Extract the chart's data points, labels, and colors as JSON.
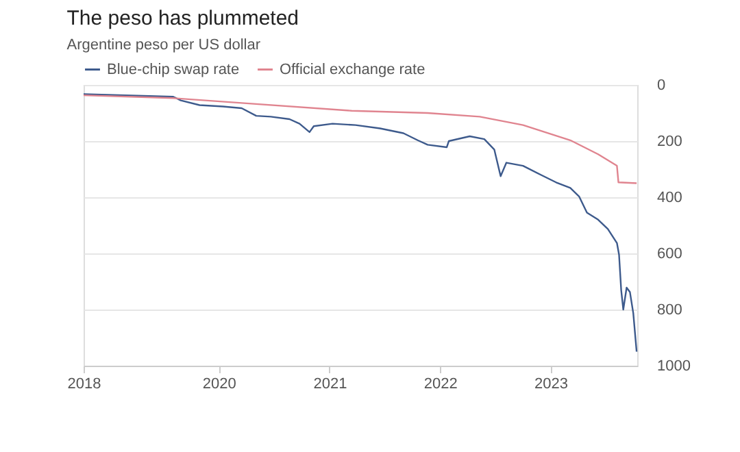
{
  "chart_data": {
    "type": "line",
    "title": "The peso has plummeted",
    "subtitle": "Argentine peso per US dollar",
    "x": [
      "2018-10-12",
      "2019-08-04",
      "2019-08-29",
      "2019-10-30",
      "2020-01-15",
      "2020-03-17",
      "2020-05-04",
      "2020-06-21",
      "2020-08-22",
      "2020-09-24",
      "2020-10-27",
      "2020-11-10",
      "2021-01-11",
      "2021-03-28",
      "2021-06-17",
      "2021-09-02",
      "2021-10-19",
      "2021-11-21",
      "2022-01-23",
      "2022-01-30",
      "2022-04-09",
      "2022-05-27",
      "2022-06-29",
      "2022-07-20",
      "2022-08-08",
      "2022-10-02",
      "2022-12-03",
      "2023-01-19",
      "2023-03-07",
      "2023-04-05",
      "2023-05-01",
      "2023-06-07",
      "2023-07-09",
      "2023-08-08",
      "2023-08-15",
      "2023-08-22",
      "2023-08-29",
      "2023-09-09",
      "2023-09-20",
      "2023-10-01",
      "2023-10-12"
    ],
    "series": [
      {
        "name": "Blue-chip swap rate",
        "color": "#3d5a8c",
        "values": [
          33,
          42,
          55,
          72,
          77,
          83,
          110,
          113,
          122,
          138,
          168,
          147,
          138,
          143,
          155,
          172,
          197,
          213,
          222,
          200,
          183,
          193,
          230,
          325,
          277,
          288,
          322,
          347,
          367,
          397,
          455,
          480,
          513,
          563,
          605,
          730,
          800,
          722,
          738,
          813,
          950
        ]
      },
      {
        "name": "Official exchange rate",
        "color": "#e0848f",
        "x": [
          "2018-10-12",
          "2019-08-04",
          "2020-03-01",
          "2021-03-15",
          "2021-11-21",
          "2022-05-12",
          "2022-10-02",
          "2023-03-07",
          "2023-06-07",
          "2023-08-08",
          "2023-08-13",
          "2023-10-12"
        ],
        "values": [
          37,
          47,
          63,
          92,
          100,
          113,
          143,
          197,
          247,
          288,
          347,
          350
        ]
      }
    ],
    "xlim": [
      "2018-10-12",
      "2023-10-14"
    ],
    "xticks": [
      {
        "value": "2018-10-12",
        "label": "2018"
      },
      {
        "value": "2020-01-01",
        "label": "2020"
      },
      {
        "value": "2021-01-01",
        "label": "2021"
      },
      {
        "value": "2022-01-01",
        "label": "2022"
      },
      {
        "value": "2023-01-01",
        "label": "2023"
      }
    ],
    "ylim": [
      1000,
      0
    ],
    "yticks": [
      0,
      200,
      400,
      600,
      800,
      1000
    ],
    "grid": "y",
    "legend": "top left",
    "line_style": "solid",
    "marker": "none"
  }
}
